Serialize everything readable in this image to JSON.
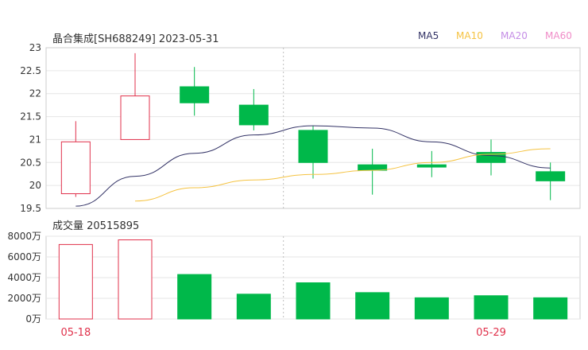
{
  "header": {
    "title": "晶合集成[SH688249] 2023-05-31",
    "volume_title": "成交量 20515895"
  },
  "legend": [
    {
      "label": "MA5",
      "color": "#333366"
    },
    {
      "label": "MA10",
      "color": "#f5c342"
    },
    {
      "label": "MA20",
      "color": "#c58ee6"
    },
    {
      "label": "MA60",
      "color": "#f08cc8"
    }
  ],
  "colors": {
    "up": "#e0314b",
    "down": "#00b84a",
    "grid": "#e6e6e6"
  },
  "chart_data": [
    {
      "type": "candlestick",
      "title": "晶合集成[SH688249] 2023-05-31",
      "ylim": [
        19.5,
        23
      ],
      "yticks": [
        "19.5",
        "20",
        "20.5",
        "21",
        "21.5",
        "22",
        "22.5",
        "23"
      ],
      "x_labels": [
        "05-18",
        "05-29"
      ],
      "x_label_index": [
        0,
        7
      ],
      "candles": [
        {
          "open": 19.82,
          "close": 20.95,
          "high": 21.4,
          "low": 19.75
        },
        {
          "open": 21.0,
          "close": 21.95,
          "high": 22.88,
          "low": 21.0
        },
        {
          "open": 22.15,
          "close": 21.8,
          "high": 22.58,
          "low": 21.52
        },
        {
          "open": 21.75,
          "close": 21.32,
          "high": 22.1,
          "low": 21.2
        },
        {
          "open": 21.2,
          "close": 20.5,
          "high": 21.3,
          "low": 20.15
        },
        {
          "open": 20.45,
          "close": 20.33,
          "high": 20.8,
          "low": 19.8
        },
        {
          "open": 20.45,
          "close": 20.4,
          "high": 20.75,
          "low": 20.18
        },
        {
          "open": 20.72,
          "close": 20.5,
          "high": 21.0,
          "low": 20.22
        },
        {
          "open": 20.3,
          "close": 20.1,
          "high": 20.5,
          "low": 19.68
        }
      ],
      "series": [
        {
          "name": "MA5",
          "values": [
            19.55,
            20.2,
            20.7,
            21.1,
            21.3,
            21.25,
            20.95,
            20.65,
            20.38
          ]
        },
        {
          "name": "MA10",
          "values": [
            null,
            19.66,
            19.95,
            20.12,
            20.24,
            20.33,
            20.5,
            20.68,
            20.8
          ]
        }
      ]
    },
    {
      "type": "bar",
      "title": "成交量 20515895",
      "ylim": [
        0,
        8000
      ],
      "yticks": [
        "0万",
        "2000万",
        "4000万",
        "6000万",
        "8000万"
      ],
      "values": [
        7200,
        7650,
        4300,
        2400,
        3500,
        2550,
        2050,
        2250,
        2050
      ],
      "direction": [
        "up",
        "up",
        "down",
        "down",
        "down",
        "down",
        "down",
        "down",
        "down"
      ]
    }
  ]
}
